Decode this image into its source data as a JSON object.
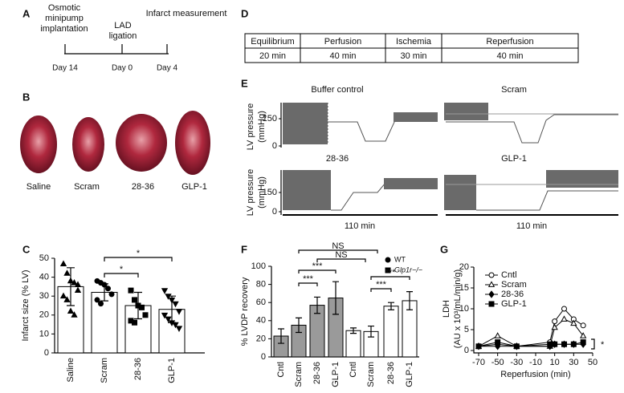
{
  "panels": {
    "A": {
      "label": "A",
      "events": [
        [
          "Osmotic",
          "minipump",
          "implantation"
        ],
        [
          "LAD",
          "ligation"
        ],
        [
          "Infarct measurement"
        ]
      ],
      "days": [
        "Day 14",
        "Day 0",
        "Day 4"
      ]
    },
    "B": {
      "label": "B",
      "groups": [
        "Saline",
        "Scram",
        "28-36",
        "GLP-1"
      ]
    },
    "D": {
      "label": "D",
      "phases": [
        [
          "Equilibrium",
          "20 min"
        ],
        [
          "Perfusion",
          "40 min"
        ],
        [
          "Ischemia",
          "30 min"
        ],
        [
          "Reperfusion",
          "40 min"
        ]
      ]
    },
    "E": {
      "label": "E",
      "titles": [
        "Buffer control",
        "Scram",
        "28-36",
        "GLP-1"
      ],
      "ylabel": [
        "LV pressure",
        "(mmHg)"
      ],
      "yticks": [
        150,
        0
      ],
      "duration": "110 min"
    }
  },
  "chart_data": [
    {
      "type": "bar",
      "panel_label": "C",
      "ylabel": "Infarct size (% LV)",
      "categories": [
        "Saline",
        "Scram",
        "28-36",
        "GLP-1"
      ],
      "values": [
        35,
        32,
        25,
        23
      ],
      "errors": [
        10,
        4.5,
        7,
        7
      ],
      "markers": [
        "triangle",
        "circle",
        "square",
        "triangle-down"
      ],
      "points": [
        [
          47,
          42,
          38,
          37,
          33,
          30,
          28,
          22,
          20,
          36
        ],
        [
          38,
          37,
          36,
          34,
          31,
          28,
          26
        ],
        [
          33,
          28,
          25,
          24,
          20,
          17,
          16
        ],
        [
          33,
          30,
          28,
          26,
          22,
          20,
          18,
          16,
          15,
          13
        ]
      ],
      "annotations": [
        "*",
        "*"
      ],
      "color": "#ffffff",
      "ylim": [
        0,
        50
      ],
      "yticks": [
        0,
        10,
        20,
        30,
        40,
        50
      ]
    },
    {
      "type": "bar",
      "panel_label": "F",
      "ylabel": "% LVDP recovery",
      "categories": [
        "Cntl",
        "Scram",
        "28-36",
        "GLP-1"
      ],
      "series": [
        {
          "name": "WT",
          "color": "#9a9a9a",
          "values": [
            23,
            35,
            57,
            65
          ],
          "errors": [
            8,
            8,
            9,
            18
          ]
        },
        {
          "name": "Glp1r−/−",
          "color": "#ffffff",
          "values": [
            29,
            28,
            56,
            62
          ],
          "errors": [
            3,
            6,
            4,
            10
          ]
        }
      ],
      "annotations": [
        "***",
        "***",
        "***",
        "***",
        "NS",
        "NS"
      ],
      "ylim": [
        0,
        100
      ],
      "yticks": [
        0,
        20,
        40,
        60,
        80,
        100
      ]
    },
    {
      "type": "line",
      "panel_label": "G",
      "ylabel": [
        "LDH",
        "(AU x 10³/mL/min/g)"
      ],
      "xlabel": "Reperfusion (min)",
      "x": [
        -70,
        -50,
        -30,
        5,
        10,
        20,
        30,
        40
      ],
      "series": [
        {
          "name": "Cntl",
          "marker": "circle",
          "filled": false,
          "values": [
            1,
            1.5,
            1,
            2,
            7,
            10,
            7.5,
            6
          ]
        },
        {
          "name": "Scram",
          "marker": "triangle",
          "filled": false,
          "values": [
            1,
            3.5,
            1,
            1,
            5.5,
            7.5,
            6.5,
            3.5
          ]
        },
        {
          "name": "28-36",
          "marker": "diamond",
          "filled": true,
          "values": [
            1,
            1,
            1,
            1,
            1.5,
            1.5,
            1.5,
            1.5
          ]
        },
        {
          "name": "GLP-1",
          "marker": "square",
          "filled": true,
          "values": [
            1,
            2,
            1,
            1.5,
            1.5,
            1.5,
            1.5,
            2
          ]
        }
      ],
      "annotations": [
        "*"
      ],
      "xlim": [
        -70,
        50
      ],
      "xticks": [
        -70,
        -50,
        -30,
        -10,
        10,
        30,
        50
      ],
      "ylim": [
        0,
        20
      ],
      "yticks": [
        0,
        5,
        10,
        15,
        20
      ]
    }
  ]
}
